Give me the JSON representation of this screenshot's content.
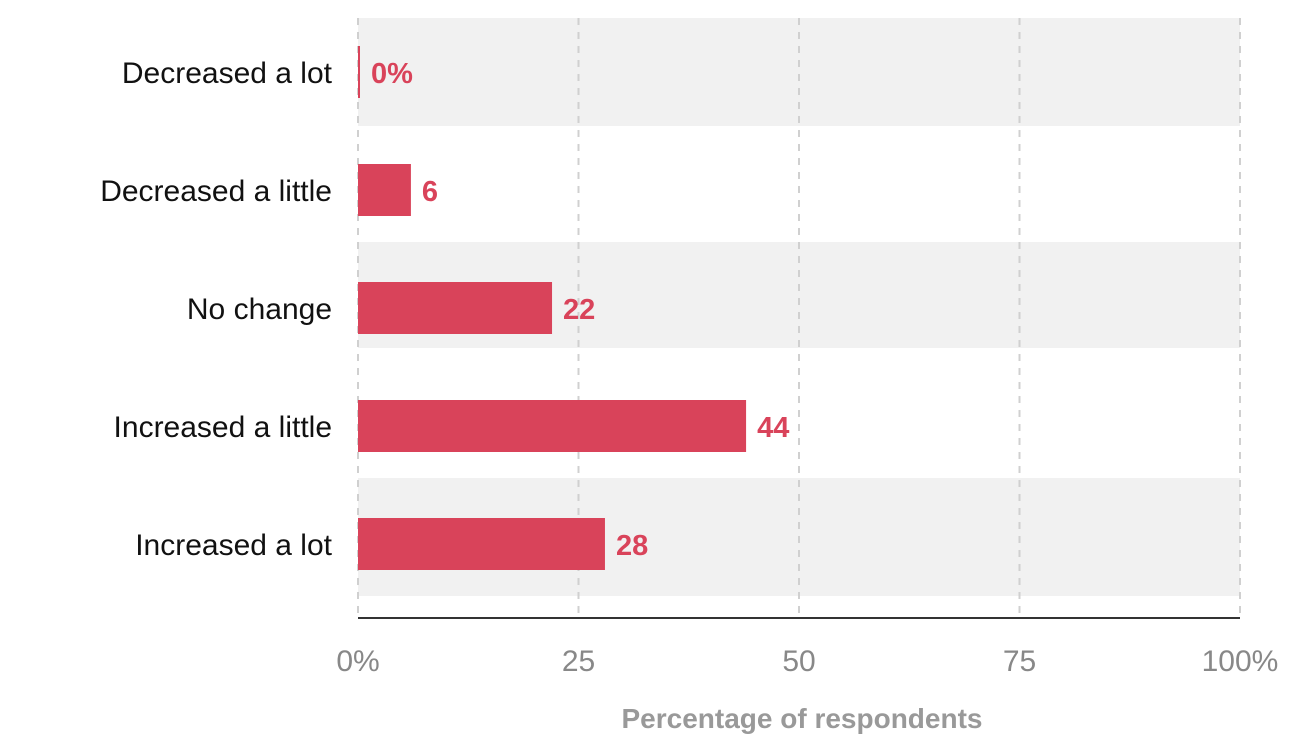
{
  "chart_data": {
    "type": "bar",
    "orientation": "horizontal",
    "categories": [
      "Decreased a lot",
      "Decreased a little",
      "No change",
      "Increased a little",
      "Increased a lot"
    ],
    "values": [
      0,
      6,
      22,
      44,
      28
    ],
    "value_labels": [
      "0%",
      "6",
      "22",
      "44",
      "28"
    ],
    "xlabel": "Percentage of respondents",
    "xlim": [
      0,
      100
    ],
    "xticks": [
      0,
      25,
      50,
      75,
      100
    ],
    "xtick_labels": [
      "0%",
      "25",
      "50",
      "75",
      "100%"
    ],
    "grid": true,
    "colors": {
      "bar": "#d9435a",
      "value_label": "#d9435a",
      "band": "#f1f1f1",
      "grid": "#d0d0d0",
      "axis": "#333333"
    }
  }
}
